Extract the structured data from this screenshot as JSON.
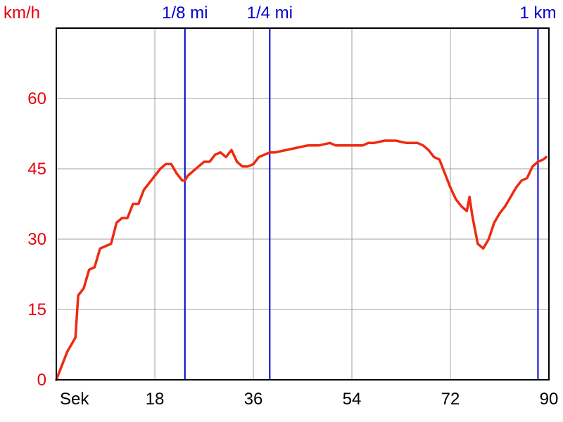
{
  "colors": {
    "speed_axis": "#e8000b",
    "series": "#ee2a10",
    "markers": "#0000cc",
    "grid": "#a0a0a0",
    "frame": "#000000",
    "time_axis": "#000000"
  },
  "chart_data": {
    "type": "line",
    "ylabel": "km/h",
    "xlabel": "Sek",
    "xlim": [
      0,
      90
    ],
    "ylim": [
      0,
      75
    ],
    "x_ticks": [
      18,
      36,
      54,
      72,
      90
    ],
    "x_tick_labels": [
      "18",
      "36",
      "54",
      "72",
      "90"
    ],
    "y_ticks": [
      0,
      15,
      30,
      45,
      60
    ],
    "y_tick_labels": [
      "0",
      "15",
      "30",
      "45",
      "60"
    ],
    "grid": true,
    "distance_markers": [
      {
        "label": "1/8 mi",
        "x": 23.5
      },
      {
        "label": "1/4 mi",
        "x": 39.0
      },
      {
        "label": "1 km",
        "x": 88.0
      }
    ],
    "series": [
      {
        "x": [
          0,
          1,
          2,
          3.5,
          4,
          5,
          6,
          7,
          8,
          9,
          10,
          11,
          12,
          13,
          14,
          15,
          16,
          17,
          18,
          19,
          20,
          21,
          22,
          23,
          23.5,
          24,
          25,
          26,
          27,
          28,
          29,
          30,
          31,
          32,
          32.6,
          33,
          34,
          35,
          36,
          37,
          38,
          39,
          40,
          42,
          44,
          46,
          48,
          50,
          51,
          52,
          54,
          56,
          57,
          58,
          60,
          62,
          64,
          66,
          67,
          68,
          69,
          70,
          71,
          72,
          73,
          74,
          75,
          75.5,
          76,
          77,
          78,
          79,
          80,
          81,
          82,
          83,
          84,
          85,
          86,
          87,
          88,
          89,
          89.5
        ],
        "y": [
          0,
          3,
          6,
          9,
          18,
          19.5,
          23.5,
          24,
          28,
          28.5,
          29,
          33.5,
          34.5,
          34.5,
          37.5,
          37.5,
          40.5,
          42,
          43.5,
          45,
          46,
          46,
          44,
          42.5,
          42.5,
          43.5,
          44.5,
          45.5,
          46.5,
          46.5,
          48,
          48.5,
          47.5,
          49,
          47.5,
          46.5,
          45.5,
          45.5,
          46,
          47.5,
          48,
          48.5,
          48.5,
          49,
          49.5,
          50,
          50,
          50.5,
          50,
          50,
          50,
          50,
          50.5,
          50.5,
          51,
          51,
          50.5,
          50.5,
          50,
          49,
          47.5,
          47,
          44,
          41,
          38.5,
          37,
          36,
          39,
          35,
          29,
          28,
          30,
          33.5,
          35.5,
          37,
          39,
          41,
          42.5,
          43,
          45.5,
          46.5,
          47,
          47.5
        ]
      }
    ]
  }
}
